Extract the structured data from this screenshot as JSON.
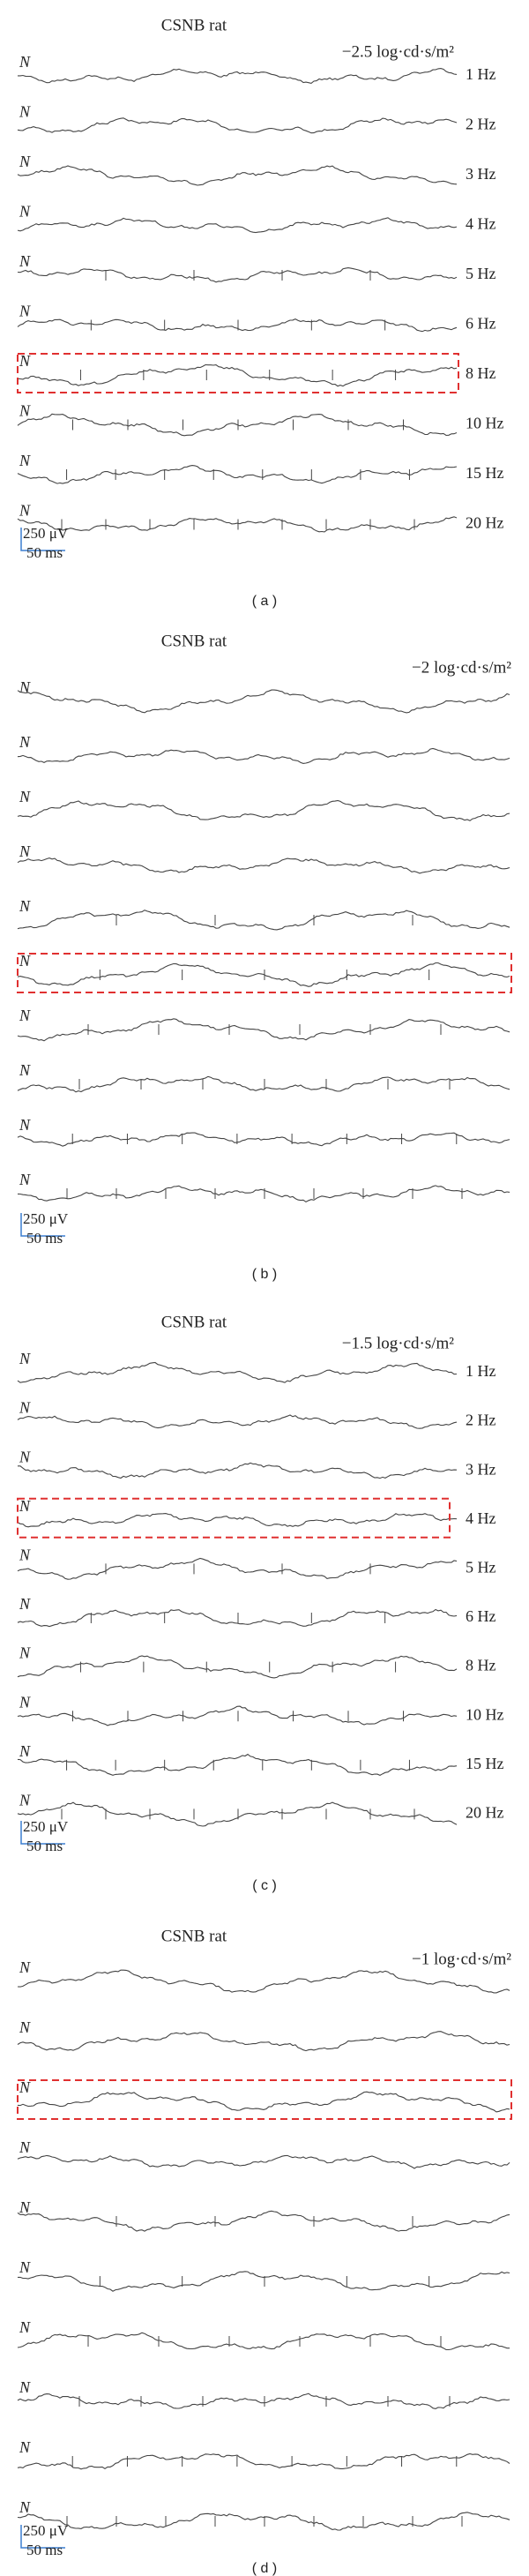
{
  "panels": [
    {
      "title": "CSNB rat",
      "intensity": "−2.5 log·cd·s/m²",
      "marker": "N",
      "frequencies": [
        "1 Hz",
        "2 Hz",
        "3 Hz",
        "4 Hz",
        "5 Hz",
        "6 Hz",
        "8 Hz",
        "10 Hz",
        "15 Hz",
        "20 Hz"
      ],
      "scale": {
        "amplitude": "250 μV",
        "time": "50 ms"
      },
      "caption": "( a )"
    },
    {
      "title": "CSNB rat",
      "intensity": "−2 log·cd·s/m²",
      "marker": "N",
      "frequencies": [
        null,
        null,
        null,
        null,
        null,
        null,
        null,
        null,
        null,
        null
      ],
      "scale": {
        "amplitude": "250 μV",
        "time": "50 ms"
      },
      "caption": "( b )"
    },
    {
      "title": "CSNB rat",
      "intensity": "−1.5 log·cd·s/m²",
      "marker": "N",
      "frequencies": [
        "1 Hz",
        "2 Hz",
        "3 Hz",
        "4 Hz",
        "5 Hz",
        "6 Hz",
        "8 Hz",
        "10 Hz",
        "15 Hz",
        "20 Hz"
      ],
      "scale": {
        "amplitude": "250 μV",
        "time": "50 ms"
      },
      "caption": "( c )"
    },
    {
      "title": "CSNB rat",
      "intensity": "−1 log·cd·s/m²",
      "marker": "N",
      "frequencies": [
        null,
        null,
        null,
        null,
        null,
        null,
        null,
        null,
        null,
        null
      ],
      "scale": {
        "amplitude": "250 μV",
        "time": "50 ms"
      },
      "caption": "( d )"
    }
  ]
}
